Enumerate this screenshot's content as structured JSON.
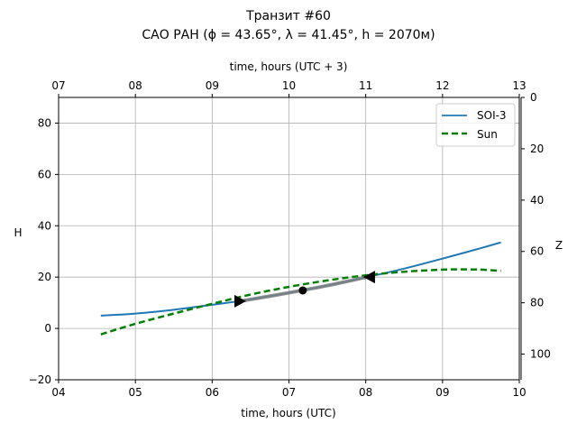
{
  "chart_data": {
    "type": "line",
    "title_line1": "Транзит #60",
    "title_line2": "САО РАН (ϕ = 43.65°, λ = 41.45°, h = 2070м)",
    "xlabel": "time, hours (UTC)",
    "xlabel_top": "time, hours (UTC + 3)",
    "ylabel": "H",
    "ylabel_right": "Z",
    "xlim": [
      4,
      10
    ],
    "ylim": [
      -20,
      90
    ],
    "ylim_right": [
      110,
      0
    ],
    "grid": true,
    "legend_position": "top-right",
    "x_ticks": [
      4,
      5,
      6,
      7,
      8,
      9,
      10
    ],
    "x_tick_labels": [
      "04",
      "05",
      "06",
      "07",
      "08",
      "09",
      "10"
    ],
    "x_top_ticks": [
      7,
      8,
      9,
      10,
      11,
      12,
      13
    ],
    "x_top_tick_labels": [
      "07",
      "08",
      "09",
      "10",
      "11",
      "12",
      "13"
    ],
    "y_ticks": [
      -20,
      0,
      20,
      40,
      60,
      80
    ],
    "y_tick_labels": [
      "−20",
      "0",
      "20",
      "40",
      "60",
      "80"
    ],
    "y_right_ticks": [
      0,
      20,
      40,
      60,
      80,
      100
    ],
    "y_right_tick_labels": [
      "0",
      "20",
      "40",
      "60",
      "80",
      "100"
    ],
    "series": [
      {
        "name": "SOI-3",
        "color": "#1f77b4",
        "style": "solid",
        "x": [
          4.55,
          5.0,
          5.5,
          6.0,
          6.5,
          7.0,
          7.5,
          8.0,
          8.5,
          9.0,
          9.5,
          9.76
        ],
        "y": [
          5.0,
          5.8,
          7.3,
          9.2,
          11.3,
          13.9,
          16.7,
          19.9,
          23.3,
          27.2,
          31.3,
          33.5
        ]
      },
      {
        "name": "Sun",
        "color": "#008000",
        "style": "dashed",
        "x": [
          4.55,
          5.0,
          5.5,
          6.0,
          6.5,
          7.0,
          7.5,
          8.0,
          8.5,
          9.0,
          9.2,
          9.5,
          9.76
        ],
        "y": [
          -2.3,
          1.8,
          5.8,
          9.6,
          13.2,
          16.2,
          18.7,
          20.7,
          22.1,
          22.9,
          23.0,
          22.9,
          22.4
        ]
      }
    ],
    "transit_segment": {
      "color": "#808080",
      "start": {
        "x": 6.36,
        "y": 10.6
      },
      "middle": {
        "x": 7.18,
        "y": 14.8
      },
      "end": {
        "x": 8.05,
        "y": 20.0
      }
    }
  }
}
